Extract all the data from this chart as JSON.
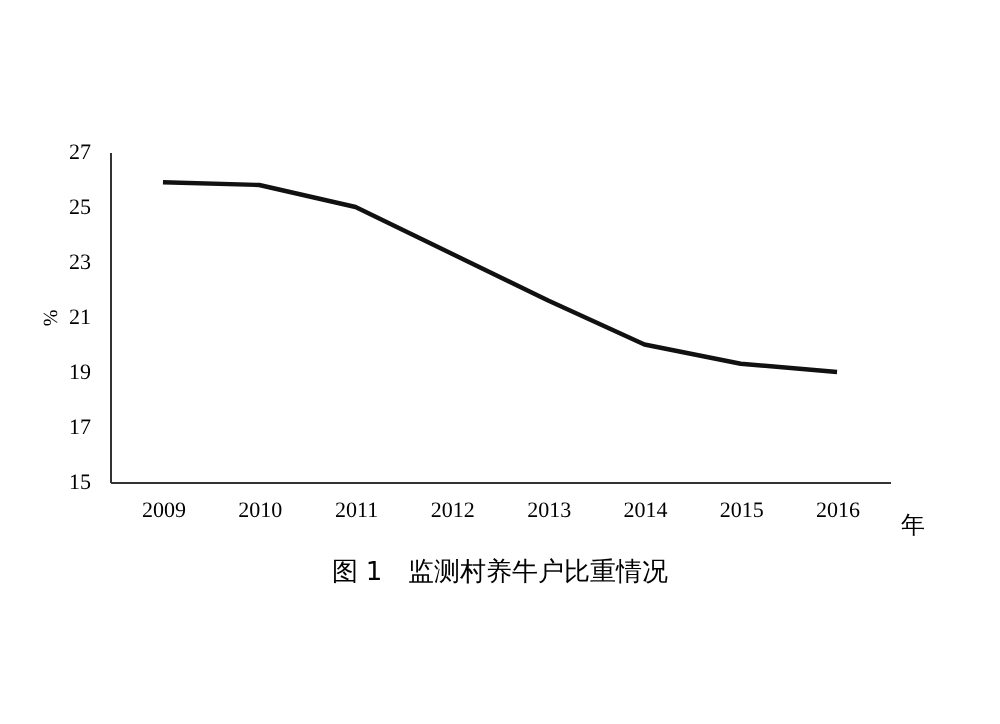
{
  "chart_data": {
    "type": "line",
    "title": "图 1　监测村养牛户比重情况",
    "xlabel": "年",
    "ylabel": "%",
    "categories": [
      "2009",
      "2010",
      "2011",
      "2012",
      "2013",
      "2014",
      "2015",
      "2016"
    ],
    "series": [
      {
        "color": "#111111",
        "values": [
          25.9,
          25.8,
          25.0,
          23.3,
          21.6,
          20.0,
          19.3,
          19.0
        ]
      }
    ],
    "ylim": [
      15,
      27
    ],
    "yticks": [
      15,
      17,
      19,
      21,
      23,
      25,
      27
    ],
    "grid": false,
    "marker": "none",
    "line_style": "solid"
  }
}
